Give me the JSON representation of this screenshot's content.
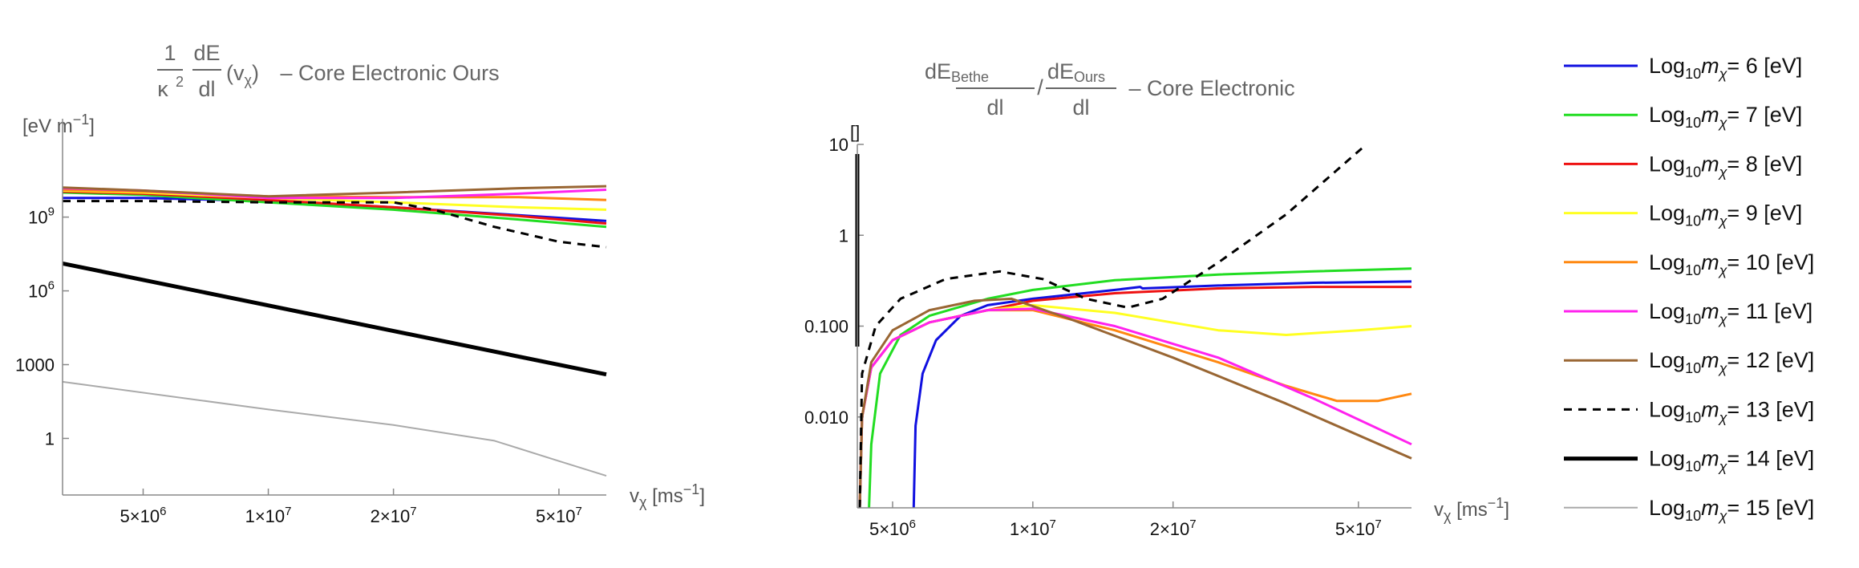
{
  "chart_data": [
    {
      "type": "line",
      "title": {
        "frac1_num": "1",
        "frac1_den_base": "κ",
        "frac1_den_exp": "2",
        "frac2_num": "dE",
        "frac2_den": "dl",
        "arg": "(v",
        "arg_sub": "χ",
        "arg_close": ")",
        "rest": " – Core Electronic Ours"
      },
      "ylabel": "[eV m",
      "ylabel_exp": "−1",
      "ylabel_close": "]",
      "xlabel_sym": "v",
      "xlabel_sub": "χ",
      "xlabel_unit": " [ms",
      "xlabel_exp": "−1",
      "xlabel_close": "]",
      "xscale": "log",
      "yscale": "log",
      "xlim": [
        3200000,
        65000000
      ],
      "ylim": [
        0.005,
        10000000000000.0
      ],
      "xticks": [
        {
          "value": 5000000,
          "label": "5×10",
          "exp": "6"
        },
        {
          "value": 10000000,
          "label": "1×10",
          "exp": "7"
        },
        {
          "value": 20000000,
          "label": "2×10",
          "exp": "7"
        },
        {
          "value": 50000000,
          "label": "5×10",
          "exp": "7"
        }
      ],
      "yticks": [
        {
          "value": 1000000000.0,
          "label": "10",
          "exp": "9"
        },
        {
          "value": 1000000.0,
          "label": "10",
          "exp": "6"
        },
        {
          "value": 1000,
          "label": "1000",
          "exp": ""
        },
        {
          "value": 1,
          "label": "1",
          "exp": ""
        }
      ],
      "series": [
        {
          "name": "m6",
          "color": "#1010e0",
          "width": 3,
          "dash": "",
          "x": [
            3200000,
            5000000,
            10000000,
            20000000,
            40000000,
            65000000
          ],
          "y": [
            6000000000.0,
            6000000000.0,
            4500000000.0,
            2500000000.0,
            1200000000.0,
            700000000.0
          ]
        },
        {
          "name": "m7",
          "color": "#22dd22",
          "width": 3,
          "dash": "",
          "x": [
            3200000,
            5000000,
            10000000,
            20000000,
            40000000,
            65000000
          ],
          "y": [
            10000000000.0,
            8000000000.0,
            4000000000.0,
            2000000000.0,
            800000000.0,
            400000000.0
          ]
        },
        {
          "name": "m8",
          "color": "#ee1111",
          "width": 3,
          "dash": "",
          "x": [
            3200000,
            5000000,
            10000000,
            20000000,
            40000000,
            65000000
          ],
          "y": [
            11000000000.0,
            9000000000.0,
            5000000000.0,
            2500000000.0,
            1100000000.0,
            550000000.0
          ]
        },
        {
          "name": "m9",
          "color": "#ffff22",
          "width": 3,
          "dash": "",
          "x": [
            3200000,
            5000000,
            10000000,
            20000000,
            40000000,
            65000000
          ],
          "y": [
            12000000000.0,
            10000000000.0,
            6000000000.0,
            4000000000.0,
            2500000000.0,
            2000000000.0
          ]
        },
        {
          "name": "m10",
          "color": "#ff8811",
          "width": 3,
          "dash": "",
          "x": [
            3200000,
            5000000,
            10000000,
            20000000,
            40000000,
            65000000
          ],
          "y": [
            13000000000.0,
            11000000000.0,
            7000000000.0,
            6500000000.0,
            6500000000.0,
            5000000000.0
          ]
        },
        {
          "name": "m11",
          "color": "#ff22ee",
          "width": 3,
          "dash": "",
          "x": [
            3200000,
            5000000,
            10000000,
            20000000,
            40000000,
            65000000
          ],
          "y": [
            15000000000.0,
            12000000000.0,
            6000000000.0,
            6000000000.0,
            9000000000.0,
            13000000000.0
          ]
        },
        {
          "name": "m12",
          "color": "#996633",
          "width": 3,
          "dash": "",
          "x": [
            3200000,
            5000000,
            10000000,
            20000000,
            40000000,
            65000000
          ],
          "y": [
            16000000000.0,
            12000000000.0,
            7000000000.0,
            10000000000.0,
            15000000000.0,
            18000000000.0
          ]
        },
        {
          "name": "m13",
          "color": "#000000",
          "width": 3,
          "dash": "10,8",
          "x": [
            3200000,
            5000000,
            10000000,
            20000000,
            25000000,
            35000000,
            50000000,
            65000000
          ],
          "y": [
            4500000000.0,
            4500000000.0,
            4000000000.0,
            4000000000.0,
            2000000000.0,
            400000000.0,
            100000000.0,
            60000000.0
          ]
        },
        {
          "name": "m14",
          "color": "#000000",
          "width": 5,
          "dash": "",
          "x": [
            3200000,
            65000000
          ],
          "y": [
            13000000.0,
            400
          ]
        },
        {
          "name": "m15",
          "color": "#aaaaaa",
          "width": 2,
          "dash": "",
          "x": [
            3200000,
            10000000,
            20000000,
            35000000,
            50000000,
            65000000
          ],
          "y": [
            200,
            15,
            3.5,
            0.8,
            0.12,
            0.03
          ]
        }
      ]
    },
    {
      "type": "line",
      "title": {
        "frac1_num": "dE",
        "frac1_num_sub": "Bethe",
        "frac1_den": "dl",
        "slash": "/",
        "frac2_num": "dE",
        "frac2_num_sub": "Ours",
        "frac2_den": "dl",
        "rest": " – Core Electronic"
      },
      "ylabel": "[]",
      "xlabel_sym": "v",
      "xlabel_sub": "χ",
      "xlabel_unit": " [ms",
      "xlabel_exp": "−1",
      "xlabel_close": "]",
      "xscale": "log",
      "yscale": "log",
      "xlim": [
        4200000,
        65000000
      ],
      "ylim": [
        0.001,
        10
      ],
      "xticks": [
        {
          "value": 5000000,
          "label": "5×10",
          "exp": "6"
        },
        {
          "value": 10000000,
          "label": "1×10",
          "exp": "7"
        },
        {
          "value": 20000000,
          "label": "2×10",
          "exp": "7"
        },
        {
          "value": 50000000,
          "label": "5×10",
          "exp": "7"
        }
      ],
      "yticks": [
        {
          "value": 10,
          "label": "10",
          "exp": ""
        },
        {
          "value": 1,
          "label": "1",
          "exp": ""
        },
        {
          "value": 0.1,
          "label": "0.100",
          "exp": ""
        },
        {
          "value": 0.01,
          "label": "0.010",
          "exp": ""
        }
      ],
      "series": [
        {
          "name": "m6",
          "color": "#1010e0",
          "width": 3,
          "dash": "",
          "x": [
            5550000,
            5600000,
            5800000,
            6200000,
            7000000,
            8000000,
            10000000,
            15000000,
            17000000,
            17200000,
            25000000,
            40000000,
            65000000
          ],
          "y": [
            0.001,
            0.008,
            0.03,
            0.07,
            0.13,
            0.17,
            0.2,
            0.25,
            0.27,
            0.26,
            0.28,
            0.3,
            0.31
          ]
        },
        {
          "name": "m7",
          "color": "#22dd22",
          "width": 3,
          "dash": "",
          "x": [
            4450000,
            4500000,
            4700000,
            5200000,
            6000000,
            8000000,
            10000000,
            15000000,
            25000000,
            40000000,
            65000000
          ],
          "y": [
            0.001,
            0.005,
            0.03,
            0.08,
            0.13,
            0.2,
            0.25,
            0.32,
            0.37,
            0.4,
            0.43
          ]
        },
        {
          "name": "m8",
          "color": "#ee1111",
          "width": 3,
          "dash": "",
          "x": [
            4250000,
            4300000,
            4500000,
            5000000,
            6000000,
            8000000,
            10000000,
            15000000,
            25000000,
            40000000,
            65000000
          ],
          "y": [
            0.001,
            0.01,
            0.035,
            0.07,
            0.11,
            0.15,
            0.19,
            0.23,
            0.26,
            0.27,
            0.27
          ]
        },
        {
          "name": "m9",
          "color": "#ffff22",
          "width": 3,
          "dash": "",
          "x": [
            4250000,
            4300000,
            4500000,
            5000000,
            6000000,
            8000000,
            10000000,
            15000000,
            25000000,
            35000000,
            50000000,
            65000000
          ],
          "y": [
            0.001,
            0.01,
            0.035,
            0.07,
            0.11,
            0.15,
            0.17,
            0.14,
            0.09,
            0.08,
            0.09,
            0.1
          ]
        },
        {
          "name": "m10",
          "color": "#ff8811",
          "width": 3,
          "dash": "",
          "x": [
            4250000,
            4300000,
            4500000,
            5000000,
            6000000,
            8000000,
            10000000,
            15000000,
            25000000,
            35000000,
            45000000,
            55000000,
            65000000
          ],
          "y": [
            0.001,
            0.01,
            0.035,
            0.07,
            0.11,
            0.15,
            0.15,
            0.09,
            0.04,
            0.022,
            0.015,
            0.015,
            0.018
          ]
        },
        {
          "name": "m11",
          "color": "#ff22ee",
          "width": 3,
          "dash": "",
          "x": [
            4250000,
            4300000,
            4500000,
            5000000,
            6000000,
            8000000,
            10000000,
            15000000,
            25000000,
            40000000,
            65000000
          ],
          "y": [
            0.001,
            0.01,
            0.035,
            0.07,
            0.11,
            0.15,
            0.155,
            0.1,
            0.045,
            0.016,
            0.005
          ]
        },
        {
          "name": "m12",
          "color": "#996633",
          "width": 3,
          "dash": "",
          "x": [
            4250000,
            4300000,
            4500000,
            5000000,
            6000000,
            7500000,
            9000000,
            12000000,
            20000000,
            35000000,
            65000000
          ],
          "y": [
            0.001,
            0.01,
            0.04,
            0.09,
            0.15,
            0.19,
            0.2,
            0.12,
            0.045,
            0.014,
            0.0035
          ]
        },
        {
          "name": "m13",
          "color": "#000000",
          "width": 3,
          "dash": "10,8",
          "x": [
            4250000,
            4300000,
            4600000,
            5200000,
            6500000,
            8500000,
            10500000,
            13000000,
            16000000,
            19000000,
            25000000,
            35000000,
            52000000
          ],
          "y": [
            0.001,
            0.03,
            0.1,
            0.2,
            0.33,
            0.4,
            0.33,
            0.2,
            0.16,
            0.2,
            0.5,
            1.7,
            10
          ]
        }
      ]
    }
  ],
  "legend": [
    {
      "prefix": "Log",
      "sub": "10",
      "var": "m",
      "var_sub": "χ",
      "suffix": "= 6 [eV]",
      "color": "#1010e0",
      "width": 3,
      "dash": ""
    },
    {
      "prefix": "Log",
      "sub": "10",
      "var": "m",
      "var_sub": "χ",
      "suffix": "= 7 [eV]",
      "color": "#22dd22",
      "width": 3,
      "dash": ""
    },
    {
      "prefix": "Log",
      "sub": "10",
      "var": "m",
      "var_sub": "χ",
      "suffix": "= 8 [eV]",
      "color": "#ee1111",
      "width": 3,
      "dash": ""
    },
    {
      "prefix": "Log",
      "sub": "10",
      "var": "m",
      "var_sub": "χ",
      "suffix": "= 9 [eV]",
      "color": "#ffff22",
      "width": 3,
      "dash": ""
    },
    {
      "prefix": "Log",
      "sub": "10",
      "var": "m",
      "var_sub": "χ",
      "suffix": "= 10 [eV]",
      "color": "#ff8811",
      "width": 3,
      "dash": ""
    },
    {
      "prefix": "Log",
      "sub": "10",
      "var": "m",
      "var_sub": "χ",
      "suffix": "= 11 [eV]",
      "color": "#ff22ee",
      "width": 3,
      "dash": ""
    },
    {
      "prefix": "Log",
      "sub": "10",
      "var": "m",
      "var_sub": "χ",
      "suffix": "= 12 [eV]",
      "color": "#996633",
      "width": 3,
      "dash": ""
    },
    {
      "prefix": "Log",
      "sub": "10",
      "var": "m",
      "var_sub": "χ",
      "suffix": "= 13 [eV]",
      "color": "#000000",
      "width": 3,
      "dash": "10,8"
    },
    {
      "prefix": "Log",
      "sub": "10",
      "var": "m",
      "var_sub": "χ",
      "suffix": "= 14 [eV]",
      "color": "#000000",
      "width": 5,
      "dash": ""
    },
    {
      "prefix": "Log",
      "sub": "10",
      "var": "m",
      "var_sub": "χ",
      "suffix": "= 15 [eV]",
      "color": "#aaaaaa",
      "width": 2,
      "dash": ""
    }
  ]
}
